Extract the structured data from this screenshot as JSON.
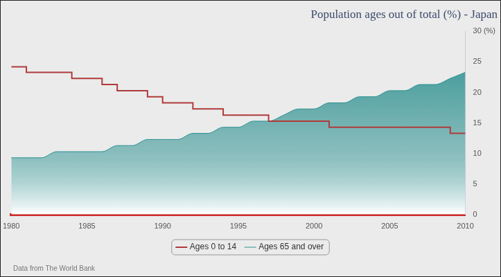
{
  "chart_data": {
    "type": "line",
    "title": "Population ages out of total (%) - Japan",
    "source": "Data from The World Bank",
    "x": [
      1980,
      1981,
      1982,
      1983,
      1984,
      1985,
      1986,
      1987,
      1988,
      1989,
      1990,
      1991,
      1992,
      1993,
      1994,
      1995,
      1996,
      1997,
      1998,
      1999,
      2000,
      2001,
      2002,
      2003,
      2004,
      2005,
      2006,
      2007,
      2008,
      2009,
      2010
    ],
    "series": [
      {
        "name": "Ages 65 and over",
        "color": "#2b8f8f",
        "type": "area",
        "line_style": "smooth",
        "values": [
          9.3,
          9.3,
          9.3,
          10.3,
          10.3,
          10.3,
          10.3,
          11.3,
          11.3,
          12.3,
          12.3,
          12.3,
          13.3,
          13.3,
          14.3,
          14.3,
          15.3,
          15.3,
          16.3,
          17.3,
          17.3,
          18.3,
          18.3,
          19.3,
          19.3,
          20.3,
          20.3,
          21.3,
          21.3,
          22.3,
          23.3
        ]
      },
      {
        "name": "Ages 0 to 14",
        "color": "#b03a3a",
        "type": "line",
        "line_style": "stepped",
        "values": [
          24.2,
          23.3,
          23.3,
          23.3,
          22.3,
          22.3,
          21.3,
          20.3,
          20.3,
          19.3,
          18.3,
          18.3,
          17.3,
          17.3,
          16.3,
          16.3,
          16.3,
          15.3,
          15.3,
          15.3,
          15.3,
          14.3,
          14.3,
          14.3,
          14.3,
          14.3,
          14.3,
          14.3,
          14.3,
          13.3,
          13.3
        ]
      }
    ],
    "xlim": [
      1980,
      2010
    ],
    "xticks": [
      1980,
      1985,
      1990,
      1995,
      2000,
      2005,
      2010
    ],
    "ylim": [
      0,
      30
    ],
    "yticks": [
      0,
      5,
      10,
      15,
      20,
      25,
      {
        "value": 30,
        "label": "30 (%)"
      }
    ],
    "grid": false,
    "legend": "bottom"
  }
}
